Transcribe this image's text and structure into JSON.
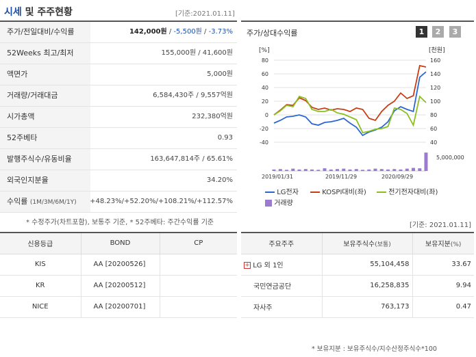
{
  "header": {
    "title_main": "시세",
    "title_sub": " 및 주주현황",
    "date": "[기준:2021.01.11]"
  },
  "quote_rows": [
    {
      "label": "주가/전일대비/수익률",
      "v1": "142,000원",
      "v2": "-5,500원",
      "v3": "-3.73%"
    },
    {
      "label": "52Weeks 최고/최저",
      "value": "155,000원 / 41,600원"
    },
    {
      "label": "액면가",
      "value": "5,000원"
    },
    {
      "label": "거래량/거래대금",
      "value": "6,584,430주 / 9,557억원"
    },
    {
      "label": "시가총액",
      "value": "232,380억원"
    },
    {
      "label": "52주베타",
      "value": "0.93"
    },
    {
      "label": "발행주식수/유동비율",
      "value": "163,647,814주 / 65.61%"
    },
    {
      "label": "외국인지분율",
      "value": "34.20%"
    },
    {
      "label": "수익률",
      "label_small": "(1M/3M/6M/1Y)",
      "r1": "+48.23%",
      "r2": "+52.20%",
      "r3": "+108.21%",
      "r4": "+112.57%"
    }
  ],
  "quote_note": "* 수정주가(차트포함), 보통주 기준, * 52주베타: 주간수익률 기준",
  "chart": {
    "title": "주가/상대수익률",
    "period_buttons": [
      "1",
      "2",
      "3"
    ]
  },
  "chart_data": {
    "type": "line",
    "y_left_unit": "[%]",
    "y_right_unit": "[천원]",
    "y_left_ticks": [
      "80",
      "60",
      "40",
      "20",
      "0",
      "-20",
      "-40"
    ],
    "y_right_ticks": [
      "160",
      "140",
      "120",
      "100",
      "80",
      "60",
      "40"
    ],
    "volume_tick": "5,000,000",
    "x_ticks": [
      "2019/01/31",
      "2019/11/29",
      "2020/09/29"
    ],
    "ylim_left": [
      -40,
      80
    ],
    "series": [
      {
        "name": "LG전자",
        "color": "#2a66d0",
        "values": [
          -12,
          -8,
          -3,
          -2,
          0,
          -3,
          -13,
          -15,
          -11,
          -10,
          -8,
          -5,
          -12,
          -18,
          -30,
          -25,
          -22,
          -18,
          -10,
          6,
          12,
          8,
          5,
          55,
          63
        ]
      },
      {
        "name": "KOSPI대비(좌)",
        "color": "#c83c14",
        "values": [
          0,
          7,
          15,
          14,
          25,
          21,
          11,
          8,
          10,
          7,
          9,
          8,
          5,
          10,
          8,
          -5,
          -8,
          5,
          14,
          20,
          32,
          24,
          28,
          72,
          70
        ]
      },
      {
        "name": "전기전자대비(좌)",
        "color": "#8cbf1e",
        "values": [
          0,
          6,
          14,
          12,
          27,
          24,
          8,
          5,
          5,
          8,
          3,
          1,
          -3,
          -7,
          -26,
          -24,
          -21,
          -20,
          -17,
          10,
          8,
          2,
          -15,
          27,
          18
        ]
      }
    ],
    "volume": {
      "name": "거래량",
      "color": "#9b7ad0",
      "values": [
        0.4,
        0.5,
        0.3,
        0.6,
        0.4,
        0.5,
        0.4,
        0.3,
        0.7,
        0.4,
        0.5,
        0.6,
        0.4,
        0.5,
        0.3,
        0.4,
        0.6,
        0.5,
        0.4,
        0.5,
        0.4,
        0.6,
        0.8,
        0.7,
        4.8
      ]
    }
  },
  "chart_date": "[기준: 2021.01.11]",
  "credit": {
    "headers": [
      "신용등급",
      "BOND",
      "CP"
    ],
    "rows": [
      {
        "agency": "KIS",
        "bond": "AA  [20200526]",
        "cp": ""
      },
      {
        "agency": "KR",
        "bond": "AA  [20200512]",
        "cp": ""
      },
      {
        "agency": "NICE",
        "bond": "AA  [20200701]",
        "cp": ""
      }
    ]
  },
  "holders": {
    "headers": [
      "주요주주",
      "보유주식수",
      "(보통)",
      "보유지분",
      "(%)"
    ],
    "rows": [
      {
        "name": "LG 외 1인",
        "shares": "55,104,458",
        "pct": "33.67",
        "expand": "+"
      },
      {
        "name": "국민연금공단",
        "shares": "16,258,835",
        "pct": "9.94"
      },
      {
        "name": "자사주",
        "shares": "763,173",
        "pct": "0.47"
      }
    ],
    "note": "* 보유지분 : 보유주식수/지수산정주식수*100"
  }
}
